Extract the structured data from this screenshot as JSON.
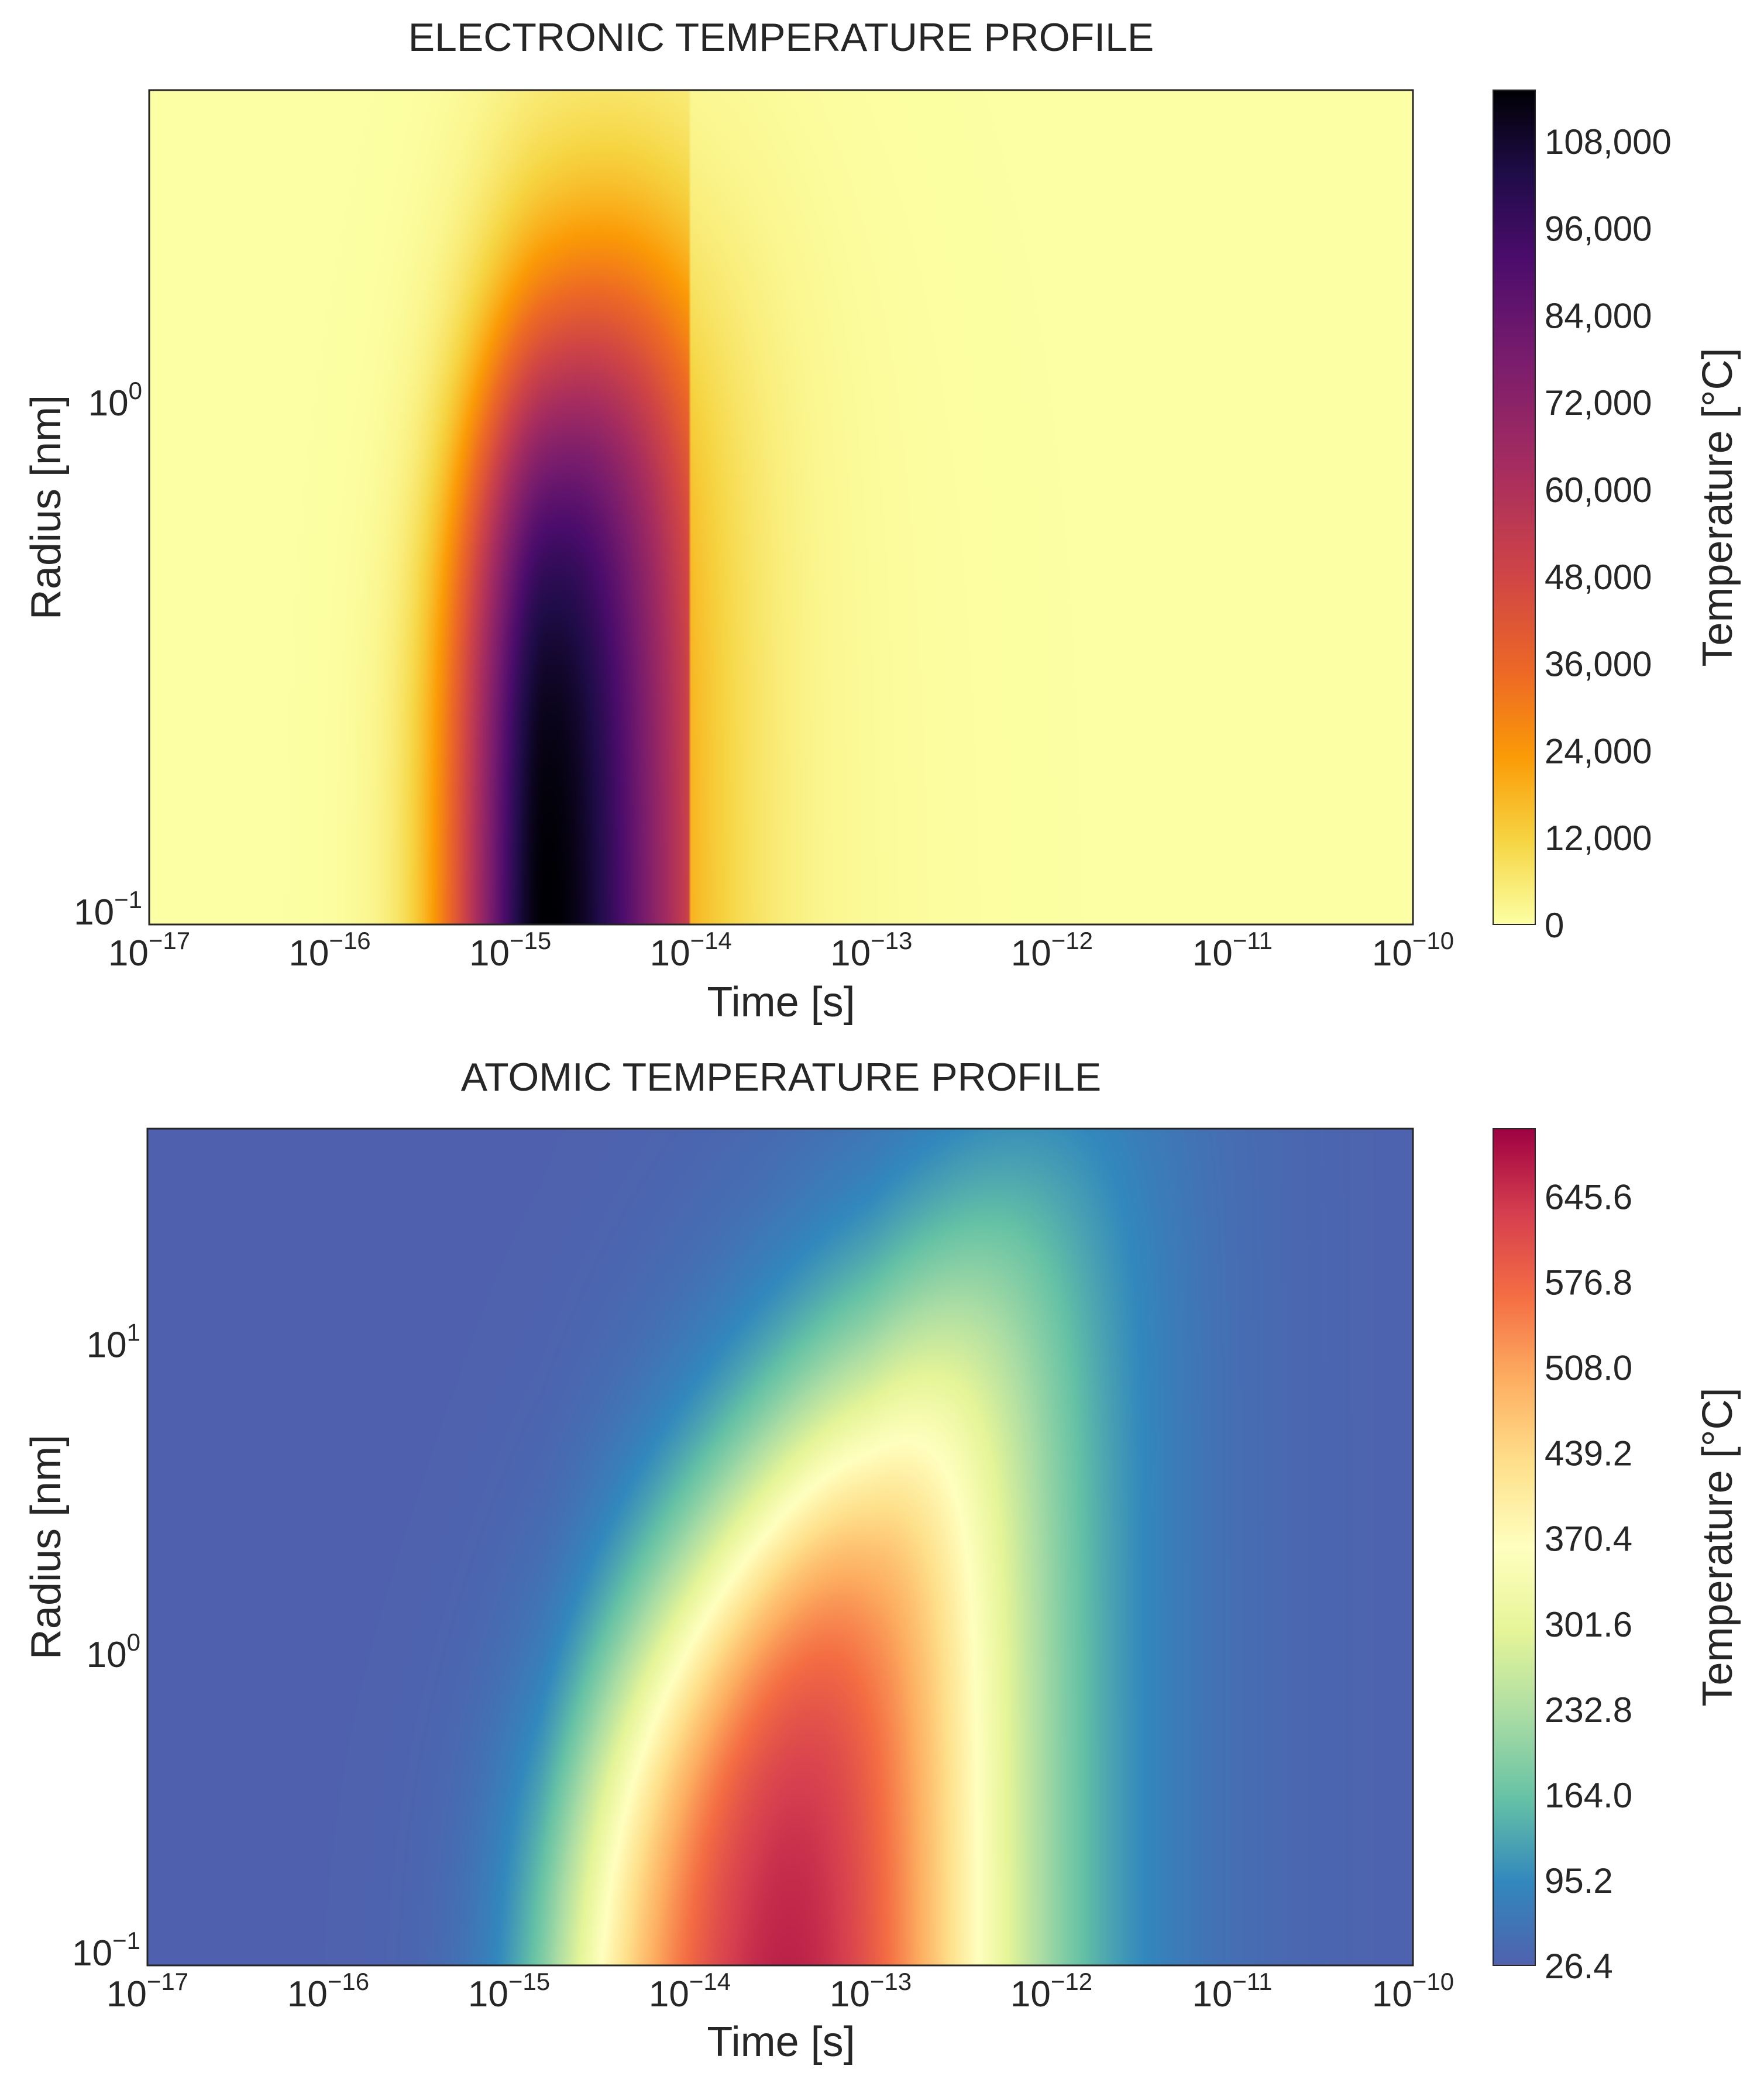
{
  "chart_data": [
    {
      "type": "heatmap",
      "title": "ELECTRONIC TEMPERATURE PROFILE",
      "xlabel": "Time [s]",
      "ylabel": "Radius [nm]",
      "xscale": "log",
      "yscale": "log",
      "xlim": [
        1e-17,
        1e-10
      ],
      "ylim": [
        0.1,
        4.0
      ],
      "x_ticks": [
        {
          "value": 1e-17,
          "base": "10",
          "exp": "−17"
        },
        {
          "value": 1e-16,
          "base": "10",
          "exp": "−16"
        },
        {
          "value": 1e-15,
          "base": "10",
          "exp": "−15"
        },
        {
          "value": 1e-14,
          "base": "10",
          "exp": "−14"
        },
        {
          "value": 1e-13,
          "base": "10",
          "exp": "−13"
        },
        {
          "value": 1e-12,
          "base": "10",
          "exp": "−12"
        },
        {
          "value": 1e-11,
          "base": "10",
          "exp": "−11"
        },
        {
          "value": 1e-10,
          "base": "10",
          "exp": "−10"
        }
      ],
      "y_ticks": [
        {
          "value": 0.1,
          "base": "10",
          "exp": "−1"
        },
        {
          "value": 1,
          "base": "10",
          "exp": "0"
        }
      ],
      "colormap": "inferno_r",
      "colorbar": {
        "label": "Temperature [°C]",
        "range": [
          0,
          115000
        ],
        "ticks": [
          {
            "value": 0,
            "label": "0"
          },
          {
            "value": 12000,
            "label": "12,000"
          },
          {
            "value": 24000,
            "label": "24,000"
          },
          {
            "value": 36000,
            "label": "36,000"
          },
          {
            "value": 48000,
            "label": "48,000"
          },
          {
            "value": 60000,
            "label": "60,000"
          },
          {
            "value": 72000,
            "label": "72,000"
          },
          {
            "value": 84000,
            "label": "84,000"
          },
          {
            "value": 96000,
            "label": "96,000"
          },
          {
            "value": 108000,
            "label": "108,000"
          }
        ]
      },
      "model": {
        "peak_value": 115000,
        "peak_time": 1.6e-15,
        "time_rise_sigma_decades": 0.35,
        "time_fall_sigma_decades": 0.6,
        "radius_core": 0.25,
        "radius_spread_min": 0.25,
        "radius_spread_max": 1.6,
        "cutoff_time": 1e-14,
        "background_value": 1500
      }
    },
    {
      "type": "heatmap",
      "title": "ATOMIC TEMPERATURE PROFILE",
      "xlabel": "Time [s]",
      "ylabel": "Radius [nm]",
      "xscale": "log",
      "yscale": "log",
      "xlim": [
        1e-17,
        1e-10
      ],
      "ylim": [
        0.1,
        50
      ],
      "x_ticks": [
        {
          "value": 1e-17,
          "base": "10",
          "exp": "−17"
        },
        {
          "value": 1e-16,
          "base": "10",
          "exp": "−16"
        },
        {
          "value": 1e-15,
          "base": "10",
          "exp": "−15"
        },
        {
          "value": 1e-14,
          "base": "10",
          "exp": "−14"
        },
        {
          "value": 1e-13,
          "base": "10",
          "exp": "−13"
        },
        {
          "value": 1e-12,
          "base": "10",
          "exp": "−12"
        },
        {
          "value": 1e-11,
          "base": "10",
          "exp": "−11"
        },
        {
          "value": 1e-10,
          "base": "10",
          "exp": "−10"
        }
      ],
      "y_ticks": [
        {
          "value": 0.1,
          "base": "10",
          "exp": "−1"
        },
        {
          "value": 1,
          "base": "10",
          "exp": "0"
        },
        {
          "value": 10,
          "base": "10",
          "exp": "1"
        }
      ],
      "colormap": "Spectral_r",
      "colorbar": {
        "label": "Temperature [°C]",
        "range": [
          26.4,
          700
        ],
        "ticks": [
          {
            "value": 26.4,
            "label": "26.4"
          },
          {
            "value": 95.2,
            "label": "95.2"
          },
          {
            "value": 164.0,
            "label": "164.0"
          },
          {
            "value": 232.8,
            "label": "232.8"
          },
          {
            "value": 301.6,
            "label": "301.6"
          },
          {
            "value": 370.4,
            "label": "370.4"
          },
          {
            "value": 439.2,
            "label": "439.2"
          },
          {
            "value": 508.0,
            "label": "508.0"
          },
          {
            "value": 576.8,
            "label": "576.8"
          },
          {
            "value": 645.6,
            "label": "645.6"
          }
        ]
      },
      "model": {
        "peak_value": 700,
        "base_value": 26.4,
        "peak_time": 4e-14,
        "onset_time": 1.5e-15,
        "onset_sigma_decades": 0.22,
        "decay_time": 1e-12,
        "decay_sigma_decades": 0.45,
        "front_radius_start": 0.45,
        "front_radius_end": 6,
        "front_width_decades": 0.35
      }
    }
  ]
}
